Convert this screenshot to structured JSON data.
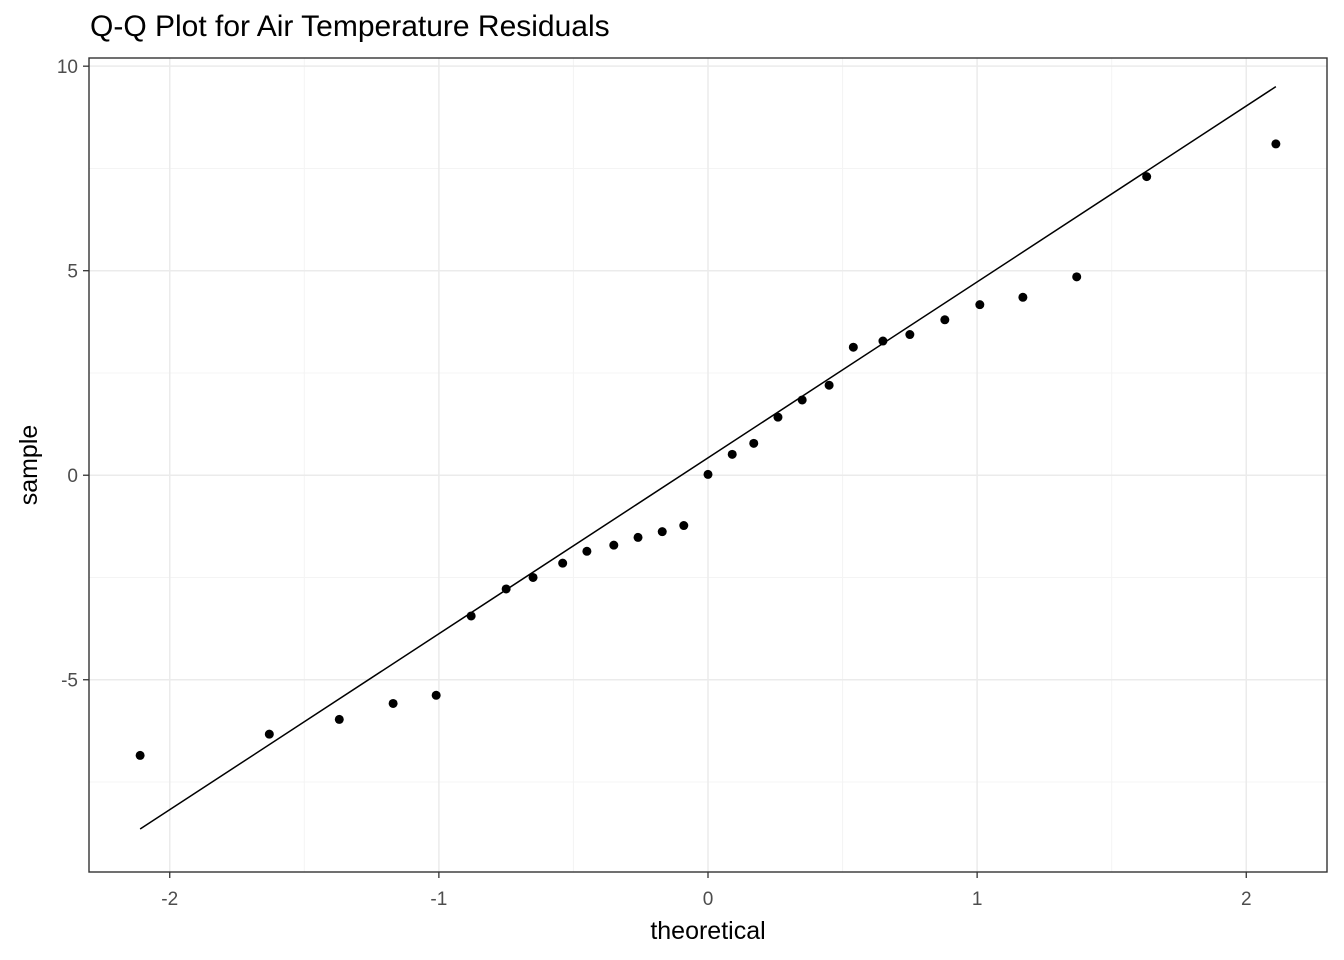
{
  "chart_data": {
    "type": "scatter",
    "title": "Q-Q Plot for Air Temperature Residuals",
    "xlabel": "theoretical",
    "ylabel": "sample",
    "xlim": [
      -2.3,
      2.3
    ],
    "ylim": [
      -9.7,
      10.2
    ],
    "x_ticks": [
      -2,
      -1,
      0,
      1,
      2
    ],
    "x_tick_labels": [
      "-2",
      "-1",
      "0",
      "1",
      "2"
    ],
    "y_ticks": [
      -5,
      0,
      5,
      10
    ],
    "y_tick_labels": [
      "-5",
      "0",
      "5",
      "10"
    ],
    "grid": true,
    "legend": "none",
    "points": {
      "x": [
        -2.11,
        -1.63,
        -1.37,
        -1.17,
        -1.01,
        -0.88,
        -0.75,
        -0.65,
        -0.54,
        -0.45,
        -0.35,
        -0.26,
        -0.17,
        -0.09,
        0.0,
        0.09,
        0.17,
        0.26,
        0.35,
        0.45,
        0.54,
        0.65,
        0.75,
        0.88,
        1.01,
        1.17,
        1.37,
        1.63,
        2.11
      ],
      "y": [
        -6.85,
        -6.33,
        -5.97,
        -5.58,
        -5.38,
        -3.44,
        -2.78,
        -2.5,
        -2.15,
        -1.86,
        -1.71,
        -1.52,
        -1.38,
        -1.23,
        0.02,
        0.51,
        0.78,
        1.42,
        1.84,
        2.2,
        3.13,
        3.28,
        3.44,
        3.8,
        4.17,
        4.35,
        4.85,
        7.3,
        8.1
      ]
    },
    "reference_line": {
      "x": [
        -2.11,
        2.11
      ],
      "y": [
        -8.65,
        9.5
      ]
    },
    "colors": {
      "points": "#000000",
      "line": "#000000",
      "grid_major": "#ebebeb",
      "grid_minor": "#f4f4f4",
      "panel_border": "#333333"
    }
  }
}
